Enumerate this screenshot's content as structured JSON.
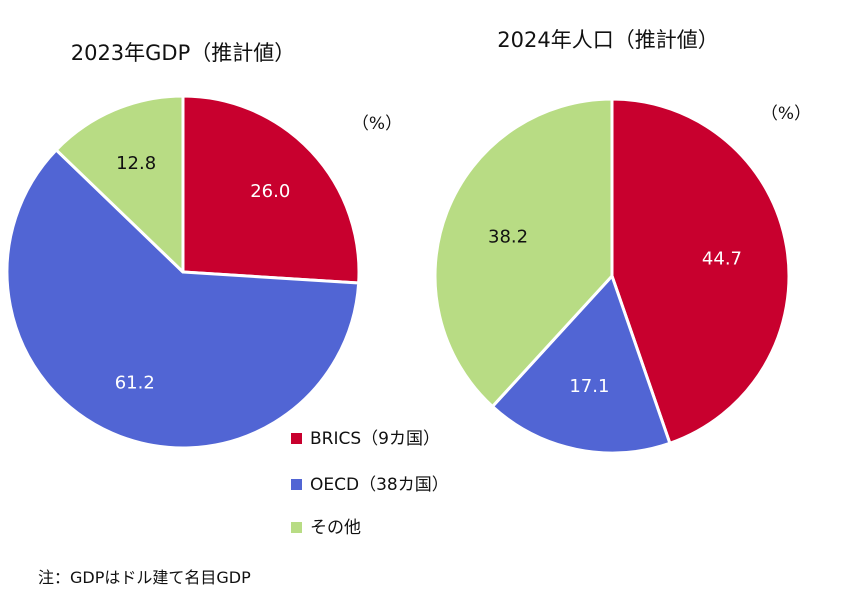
{
  "colors": {
    "brics": "#c8002e",
    "oecd": "#5165d4",
    "other": "#b8dc84"
  },
  "chart_data": [
    {
      "type": "pie",
      "title": "2023年GDP（推計値）",
      "unit": "（%）",
      "categories": [
        "BRICS（9カ国）",
        "OECD（38カ国）",
        "その他"
      ],
      "values": [
        26.0,
        61.2,
        12.8
      ],
      "value_labels": [
        "26.0",
        "61.2",
        "12.8"
      ]
    },
    {
      "type": "pie",
      "title": "2024年人口（推計値）",
      "unit": "（%）",
      "categories": [
        "BRICS（9カ国）",
        "OECD（38カ国）",
        "その他"
      ],
      "values": [
        44.7,
        17.1,
        38.2
      ],
      "value_labels": [
        "44.7",
        "17.1",
        "38.2"
      ]
    }
  ],
  "legend": [
    {
      "label": "BRICS（9カ国）",
      "color": "#c8002e"
    },
    {
      "label": "OECD（38カ国）",
      "color": "#5165d4"
    },
    {
      "label": "その他",
      "color": "#b8dc84"
    }
  ],
  "note": "注：GDPはドル建て名目GDP"
}
